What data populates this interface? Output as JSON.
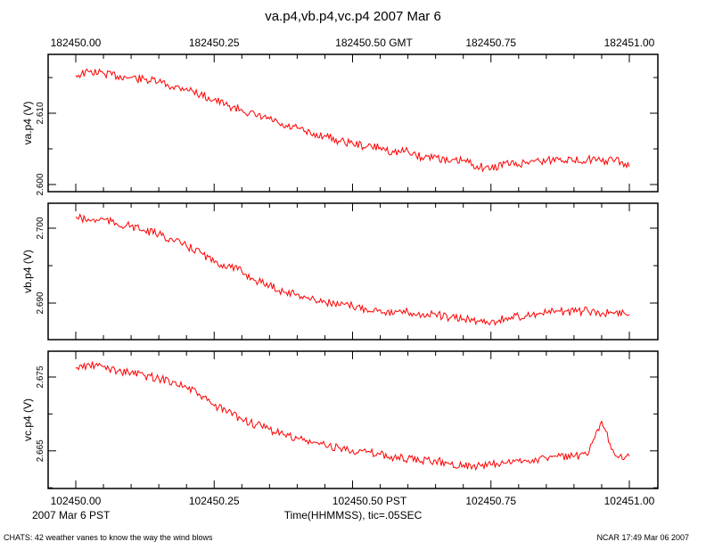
{
  "chart_data": [
    {
      "type": "line",
      "title": "va.p4,vb.p4,vc.p4 2007 Mar 6",
      "top_axis_ticks": [
        "182450.00",
        "182450.25",
        "182450.50 GMT",
        "182450.75",
        "182451.00"
      ],
      "bottom_axis_ticks": [
        "102450.00",
        "102450.25",
        "102450.50 PST",
        "102450.75",
        "102451.00"
      ],
      "xlabel": "Time(HHMMSS), tic=.05SEC",
      "date_label": "2007 Mar  6 PST",
      "xlim": [
        182450.0,
        182451.0
      ],
      "line_color": "#ff0000",
      "x_start": 182450.0,
      "x_step": 0.025,
      "panels": [
        {
          "ylabel": "va.p4 (V)",
          "ylim": [
            2.599,
            2.61825
          ],
          "yticks": [
            "2.600",
            "2.610"
          ],
          "ytick_values": [
            2.6,
            2.61
          ],
          "values": [
            2.6153,
            2.6158,
            2.6156,
            2.6152,
            2.615,
            2.6147,
            2.6144,
            2.6137,
            2.6135,
            2.6126,
            2.6119,
            2.611,
            2.6105,
            2.6096,
            2.6092,
            2.6081,
            2.6079,
            2.607,
            2.6069,
            2.6061,
            2.6058,
            2.6053,
            2.6052,
            2.6045,
            2.6047,
            2.6038,
            2.604,
            2.6031,
            2.6034,
            2.6026,
            2.6022,
            2.603,
            2.6028,
            2.6034,
            2.6033,
            2.6037,
            2.6033,
            2.6036,
            2.6032,
            2.6035,
            2.6025
          ]
        },
        {
          "ylabel": "vb.p4 (V)",
          "ylim": [
            2.68512,
            2.70333
          ],
          "yticks": [
            "2.690",
            "2.700"
          ],
          "ytick_values": [
            2.69,
            2.7
          ],
          "values": [
            2.7015,
            2.701,
            2.7012,
            2.7005,
            2.7003,
            2.6996,
            2.6992,
            2.6984,
            2.6976,
            2.6968,
            2.6954,
            2.695,
            2.6942,
            2.693,
            2.6924,
            2.6915,
            2.6912,
            2.6905,
            2.6902,
            2.6897,
            2.6896,
            2.6892,
            2.6891,
            2.6886,
            2.6888,
            2.6884,
            2.6885,
            2.688,
            2.6879,
            2.6876,
            2.6875,
            2.6879,
            2.6882,
            2.6885,
            2.6887,
            2.6889,
            2.6888,
            2.689,
            2.6886,
            2.6888,
            2.6885
          ]
        },
        {
          "ylabel": "vc.p4 (V)",
          "ylim": [
            2.6599,
            2.6785
          ],
          "yticks": [
            "2.665",
            "2.675"
          ],
          "ytick_values": [
            2.665,
            2.675
          ],
          "values": [
            2.6762,
            2.6766,
            2.6764,
            2.6758,
            2.6756,
            2.6752,
            2.6748,
            2.6744,
            2.6736,
            2.6725,
            2.6711,
            2.6703,
            2.6693,
            2.6685,
            2.6679,
            2.6672,
            2.6667,
            2.6661,
            2.6658,
            2.6654,
            2.6651,
            2.6648,
            2.6645,
            2.6641,
            2.6639,
            2.6636,
            2.6637,
            2.6632,
            2.6631,
            2.6629,
            2.6631,
            2.6633,
            2.6636,
            2.6638,
            2.664,
            2.6643,
            2.6642,
            2.6644,
            2.669,
            2.6643,
            2.6643
          ]
        }
      ]
    }
  ],
  "footer": {
    "left": "CHATS: 42 weather vanes to know the way the wind blows",
    "right": "NCAR 17:49 Mar 06 2007"
  }
}
